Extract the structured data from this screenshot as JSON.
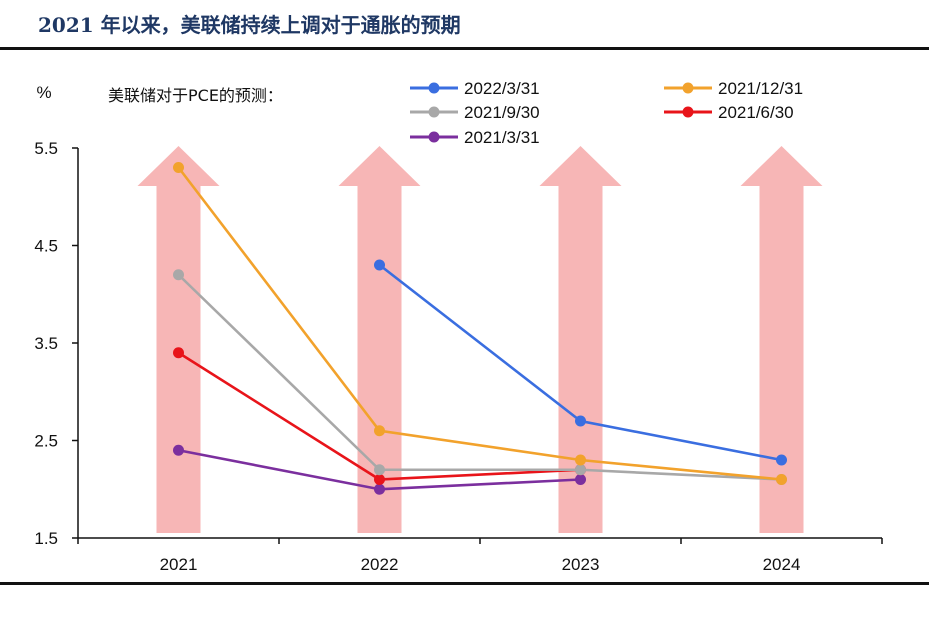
{
  "figure_title": "2021 年以来，美联储持续上调对于通胀的预期",
  "chart_data": {
    "type": "line",
    "title": "美联储对于PCE的预测：",
    "ylabel": "%",
    "xlabel": "",
    "categories": [
      "2021",
      "2022",
      "2023",
      "2024"
    ],
    "ylim": [
      1.5,
      5.5
    ],
    "yticks": [
      "5.5",
      "4.5",
      "3.5",
      "2.5",
      "1.5"
    ],
    "grid": false,
    "legend_position": "top",
    "background_arrows": true,
    "series": [
      {
        "name": "2022/3/31",
        "color": "#3a6ee0",
        "values": [
          null,
          4.3,
          2.7,
          2.3
        ]
      },
      {
        "name": "2021/12/31",
        "color": "#f2a22c",
        "values": [
          5.3,
          2.6,
          2.3,
          2.1
        ]
      },
      {
        "name": "2021/9/30",
        "color": "#a8a8a8",
        "values": [
          4.2,
          2.2,
          2.2,
          2.1
        ]
      },
      {
        "name": "2021/6/30",
        "color": "#e8141a",
        "values": [
          3.4,
          2.1,
          2.2,
          null
        ]
      },
      {
        "name": "2021/3/31",
        "color": "#7b2f9e",
        "values": [
          2.4,
          2.0,
          2.1,
          null
        ]
      }
    ]
  }
}
